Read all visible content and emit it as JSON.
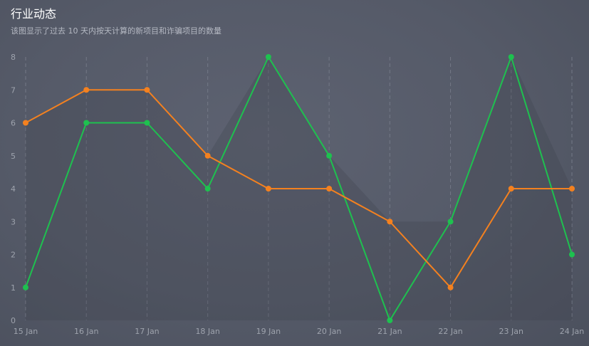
{
  "header": {
    "title": "行业动态",
    "subtitle": "该图显示了过去 10 天内按天计算的新项目和诈骗项目的数量"
  },
  "colors": {
    "green": "#1ec14f",
    "orange": "#f4811f",
    "grid": "#737886",
    "axis_text": "#9ea3ad"
  },
  "chart_data": {
    "type": "line",
    "title": "行业动态",
    "subtitle": "该图显示了过去 10 天内按天计算的新项目和诈骗项目的数量",
    "categories": [
      "15 Jan",
      "16 Jan",
      "17 Jan",
      "18 Jan",
      "19 Jan",
      "20 Jan",
      "21 Jan",
      "22 Jan",
      "23 Jan",
      "24 Jan"
    ],
    "ylim": [
      0,
      8
    ],
    "yticks": [
      0,
      1,
      2,
      3,
      4,
      5,
      6,
      7,
      8
    ],
    "grid": "vertical dashed",
    "legend": "none",
    "series": [
      {
        "values": [
          1,
          6,
          6,
          4,
          8,
          5,
          0,
          3,
          8,
          2
        ],
        "color": "#1ec14f"
      },
      {
        "values": [
          6,
          7,
          7,
          5,
          4,
          4,
          3,
          1,
          4,
          4
        ],
        "color": "#f4811f"
      }
    ]
  }
}
